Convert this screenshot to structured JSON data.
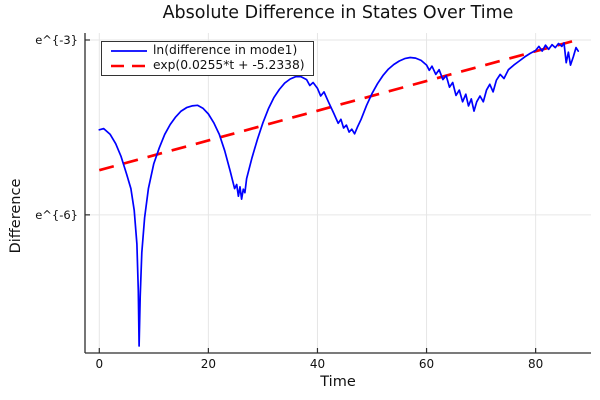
{
  "figure": {
    "title": "Absolute Difference in States Over Time",
    "xlabel": "Time",
    "ylabel": "Difference"
  },
  "legend": {
    "entries": [
      {
        "label": "ln(difference in mode1)",
        "color": "#0000ff",
        "style": "solid"
      },
      {
        "label": "exp(0.0255*t + -5.2338)",
        "color": "#ff0000",
        "style": "dashed"
      }
    ]
  },
  "chart_data": {
    "type": "line",
    "title": "Absolute Difference in States Over Time",
    "xlabel": "Time",
    "ylabel": "Difference",
    "yscale": "ln",
    "grid": true,
    "legend_position": "top-left",
    "x_ticks": [
      0,
      20,
      40,
      60,
      80
    ],
    "y_ticks": [
      {
        "label": "e^{-3}",
        "ln": -3
      },
      {
        "label": "e^{-6}",
        "ln": -6
      }
    ],
    "xlim": [
      -2.62,
      90.15
    ],
    "ylim_ln": [
      -8.37,
      -2.88
    ],
    "colors": {
      "series": "#0000ff",
      "fit": "#ff0000",
      "grid": "#e6e6e6",
      "spine": "#2c2c2c",
      "text": "#111111"
    },
    "series": [
      {
        "name": "ln(difference in mode1)",
        "color": "#0000ff",
        "style": "solid",
        "points_t_ln": [
          [
            0,
            -4.54
          ],
          [
            0.8,
            -4.52
          ],
          [
            2,
            -4.62
          ],
          [
            3,
            -4.78
          ],
          [
            4,
            -5.0
          ],
          [
            5,
            -5.3
          ],
          [
            5.8,
            -5.55
          ],
          [
            6.4,
            -5.92
          ],
          [
            6.9,
            -6.5
          ],
          [
            7.15,
            -7.3
          ],
          [
            7.3,
            -8.25
          ],
          [
            7.5,
            -7.4
          ],
          [
            7.8,
            -6.65
          ],
          [
            8.3,
            -6.05
          ],
          [
            9,
            -5.55
          ],
          [
            10,
            -5.12
          ],
          [
            11,
            -4.85
          ],
          [
            12,
            -4.62
          ],
          [
            13,
            -4.45
          ],
          [
            14,
            -4.32
          ],
          [
            15,
            -4.22
          ],
          [
            16,
            -4.16
          ],
          [
            17,
            -4.13
          ],
          [
            18,
            -4.12
          ],
          [
            19,
            -4.17
          ],
          [
            20,
            -4.27
          ],
          [
            21,
            -4.42
          ],
          [
            22,
            -4.62
          ],
          [
            23,
            -4.9
          ],
          [
            24,
            -5.25
          ],
          [
            24.8,
            -5.55
          ],
          [
            25.2,
            -5.48
          ],
          [
            25.5,
            -5.68
          ],
          [
            25.8,
            -5.52
          ],
          [
            26.1,
            -5.73
          ],
          [
            26.4,
            -5.56
          ],
          [
            26.7,
            -5.62
          ],
          [
            27,
            -5.38
          ],
          [
            28,
            -5.02
          ],
          [
            29,
            -4.7
          ],
          [
            30,
            -4.42
          ],
          [
            31,
            -4.18
          ],
          [
            32,
            -3.99
          ],
          [
            33,
            -3.85
          ],
          [
            34,
            -3.74
          ],
          [
            35,
            -3.67
          ],
          [
            36,
            -3.63
          ],
          [
            37,
            -3.63
          ],
          [
            38,
            -3.68
          ],
          [
            38.6,
            -3.78
          ],
          [
            39.2,
            -3.73
          ],
          [
            40,
            -3.83
          ],
          [
            40.6,
            -3.96
          ],
          [
            41.2,
            -3.89
          ],
          [
            42,
            -4.06
          ],
          [
            43,
            -4.26
          ],
          [
            43.8,
            -4.43
          ],
          [
            44.3,
            -4.36
          ],
          [
            44.8,
            -4.51
          ],
          [
            45.3,
            -4.46
          ],
          [
            45.8,
            -4.58
          ],
          [
            46.3,
            -4.53
          ],
          [
            46.8,
            -4.61
          ],
          [
            47.3,
            -4.5
          ],
          [
            48,
            -4.36
          ],
          [
            49,
            -4.12
          ],
          [
            50,
            -3.92
          ],
          [
            51,
            -3.75
          ],
          [
            52,
            -3.61
          ],
          [
            53,
            -3.5
          ],
          [
            54,
            -3.42
          ],
          [
            55,
            -3.36
          ],
          [
            56,
            -3.32
          ],
          [
            57,
            -3.3
          ],
          [
            58,
            -3.31
          ],
          [
            59,
            -3.35
          ],
          [
            60,
            -3.43
          ],
          [
            60.5,
            -3.52
          ],
          [
            61,
            -3.45
          ],
          [
            61.7,
            -3.59
          ],
          [
            62.3,
            -3.51
          ],
          [
            63,
            -3.68
          ],
          [
            63.6,
            -3.61
          ],
          [
            64.2,
            -3.81
          ],
          [
            64.8,
            -3.73
          ],
          [
            65.4,
            -3.95
          ],
          [
            66,
            -3.86
          ],
          [
            66.6,
            -4.06
          ],
          [
            67.2,
            -3.93
          ],
          [
            67.7,
            -4.13
          ],
          [
            68.2,
            -4.01
          ],
          [
            68.7,
            -4.22
          ],
          [
            69.2,
            -4.06
          ],
          [
            69.8,
            -3.96
          ],
          [
            70.4,
            -4.06
          ],
          [
            71,
            -3.86
          ],
          [
            71.6,
            -3.76
          ],
          [
            72.2,
            -3.89
          ],
          [
            72.8,
            -3.69
          ],
          [
            73.5,
            -3.59
          ],
          [
            74.2,
            -3.66
          ],
          [
            75,
            -3.51
          ],
          [
            76,
            -3.43
          ],
          [
            77,
            -3.36
          ],
          [
            78,
            -3.29
          ],
          [
            79,
            -3.23
          ],
          [
            80,
            -3.18
          ],
          [
            80.6,
            -3.11
          ],
          [
            81.2,
            -3.19
          ],
          [
            81.8,
            -3.09
          ],
          [
            82.4,
            -3.16
          ],
          [
            83,
            -3.08
          ],
          [
            83.6,
            -3.13
          ],
          [
            84.2,
            -3.06
          ],
          [
            84.8,
            -3.11
          ],
          [
            85.2,
            -3.05
          ],
          [
            85.6,
            -3.39
          ],
          [
            86,
            -3.21
          ],
          [
            86.4,
            -3.43
          ],
          [
            86.9,
            -3.29
          ],
          [
            87.4,
            -3.13
          ],
          [
            87.8,
            -3.19
          ]
        ]
      },
      {
        "name": "exp(0.0255*t + -5.2338)",
        "color": "#ff0000",
        "style": "dashed",
        "fit": {
          "slope": 0.0255,
          "intercept": -5.2338,
          "t_range": [
            0,
            88
          ]
        }
      }
    ]
  }
}
